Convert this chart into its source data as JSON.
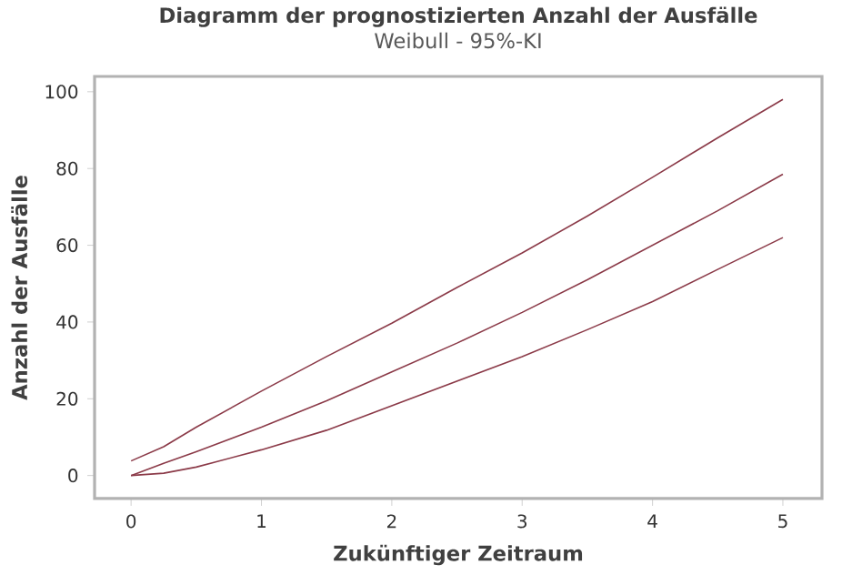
{
  "chart_data": {
    "type": "line",
    "title": "Diagramm der prognostizierten Anzahl der Ausfälle",
    "subtitle": "Weibull - 95%-KI",
    "xlabel": "Zukünftiger Zeitraum",
    "ylabel": "Anzahl der Ausfälle",
    "x": [
      0,
      0.25,
      0.5,
      1,
      1.5,
      2,
      2.5,
      3,
      3.5,
      4,
      4.5,
      5
    ],
    "series": [
      {
        "color": "#8b3a48",
        "values": [
          3.8,
          7.5,
          12.6,
          22,
          31,
          39.7,
          49,
          58,
          67.6,
          77.7,
          88,
          98
        ]
      },
      {
        "color": "#8b3a48",
        "values": [
          0,
          3.2,
          6.2,
          12.6,
          19.5,
          27,
          34.5,
          42.5,
          51,
          60,
          69,
          78.5
        ]
      },
      {
        "color": "#8b3a48",
        "values": [
          0,
          0.6,
          2.2,
          6.7,
          11.8,
          18.2,
          24.6,
          31,
          38,
          45.3,
          53.7,
          62
        ]
      }
    ],
    "xlim": [
      -0.28,
      5.3
    ],
    "ylim": [
      -6,
      104
    ],
    "xticks": [
      0,
      1,
      2,
      3,
      4,
      5
    ],
    "yticks": [
      0,
      20,
      40,
      60,
      80,
      100
    ],
    "grid": false,
    "marker": "none",
    "line_style": "solid"
  }
}
